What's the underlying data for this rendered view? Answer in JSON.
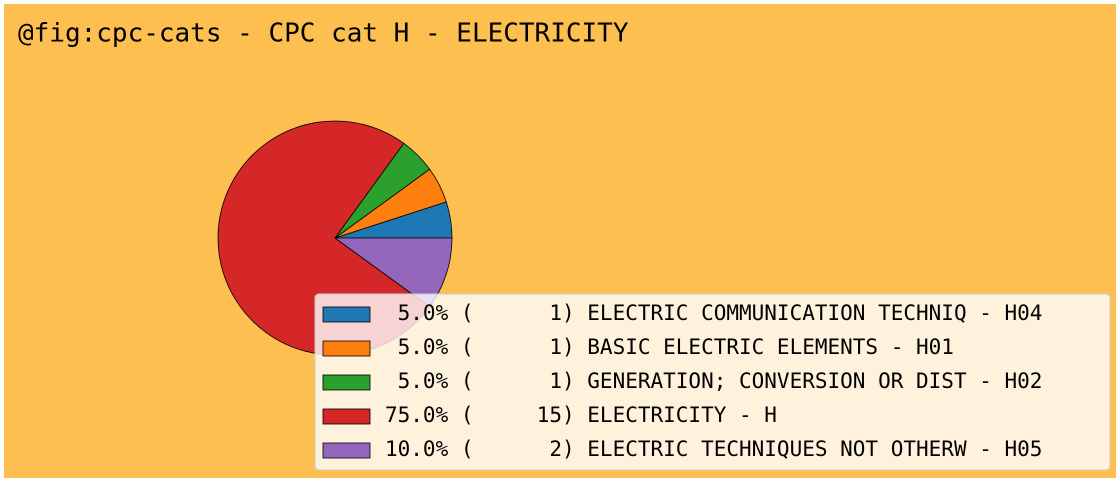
{
  "chart_data": {
    "type": "pie",
    "title": "@fig:cpc-cats - CPC cat H - ELECTRICITY",
    "categories": [
      " 5.0% (      1) ELECTRIC COMMUNICATION TECHNIQ - H04",
      " 5.0% (      1) BASIC ELECTRIC ELEMENTS - H01",
      " 5.0% (      1) GENERATION; CONVERSION OR DIST - H02",
      "75.0% (     15) ELECTRICITY - H",
      "10.0% (      2) ELECTRIC TECHNIQUES NOT OTHERW - H05"
    ],
    "values": [
      5,
      5,
      5,
      75,
      10
    ],
    "colors": [
      "#1f77b4",
      "#ff7f0e",
      "#2ca02c",
      "#d62728",
      "#9467bd"
    ],
    "legend": "lower right"
  }
}
